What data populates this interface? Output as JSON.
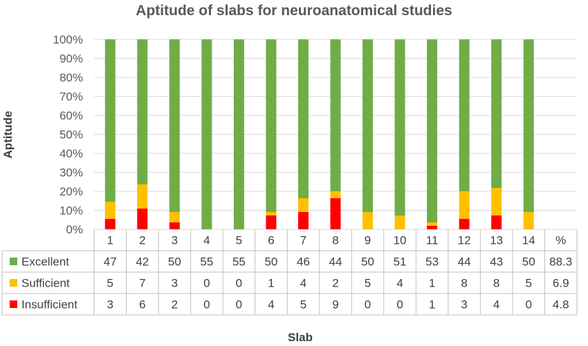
{
  "chart_data": {
    "type": "bar",
    "stacked": true,
    "percent_stacked": true,
    "title": "Aptitude of slabs for neuroanatomical studies",
    "xlabel": "Slab",
    "ylabel": "Aptitude",
    "ylim": [
      0,
      100
    ],
    "y_ticks": [
      "0%",
      "10%",
      "20%",
      "30%",
      "40%",
      "50%",
      "60%",
      "70%",
      "80%",
      "90%",
      "100%"
    ],
    "categories": [
      "1",
      "2",
      "3",
      "4",
      "5",
      "6",
      "7",
      "8",
      "9",
      "10",
      "11",
      "12",
      "13",
      "14"
    ],
    "total_column_label": "%",
    "grid": true,
    "legend": "data-table",
    "series": [
      {
        "name": "Insufficient",
        "color": "#ff0000",
        "values": [
          3,
          6,
          2,
          0,
          0,
          4,
          5,
          9,
          0,
          0,
          1,
          3,
          4,
          0
        ],
        "total": "4.8"
      },
      {
        "name": "Sufficient",
        "color": "#ffc000",
        "values": [
          5,
          7,
          3,
          0,
          0,
          1,
          4,
          2,
          5,
          4,
          1,
          8,
          8,
          5
        ],
        "total": "6.9"
      },
      {
        "name": "Excellent",
        "color": "#70ad47",
        "values": [
          47,
          42,
          50,
          55,
          55,
          50,
          46,
          44,
          50,
          51,
          53,
          44,
          43,
          50
        ],
        "total": "88.3"
      }
    ],
    "table_row_order": [
      "Excellent",
      "Sufficient",
      "Insufficient"
    ]
  }
}
